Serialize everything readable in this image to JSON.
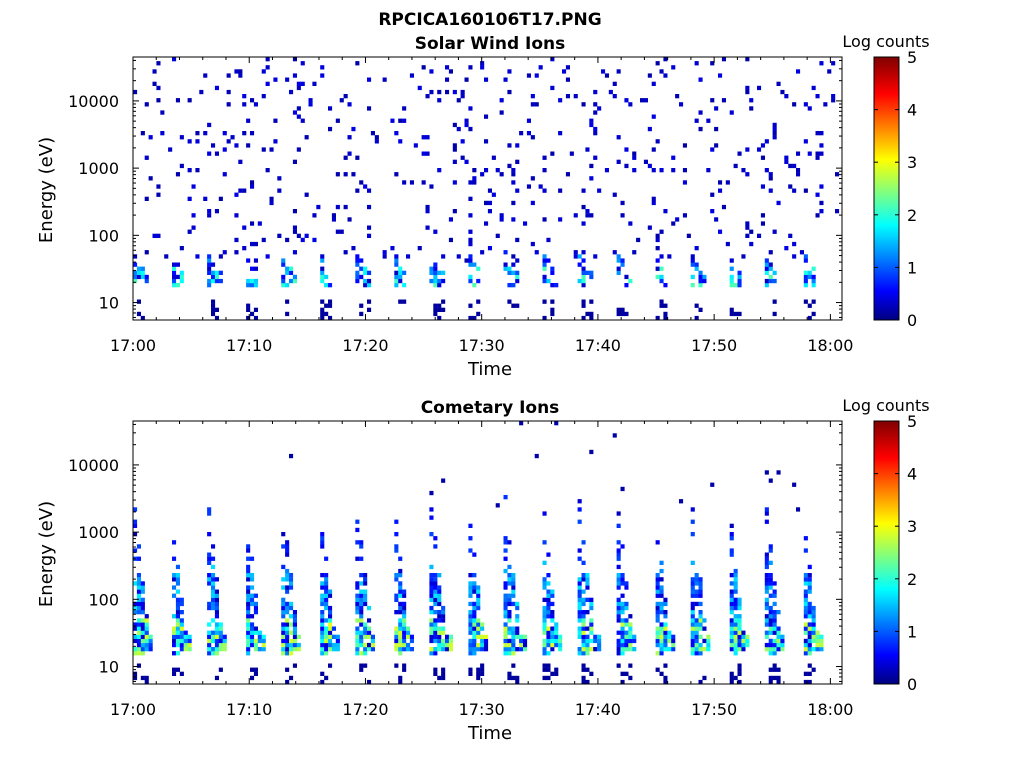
{
  "figure": {
    "title": "RPCICA160106T17.PNG"
  },
  "colors": {
    "colormap": "jet",
    "axis": "#000000",
    "background": "#ffffff"
  },
  "chart_data": [
    {
      "type": "heatmap",
      "title": "Solar Wind Ions",
      "xlabel": "Time",
      "ylabel": "Energy (eV)",
      "x_ticks": [
        "17:00",
        "17:10",
        "17:20",
        "17:30",
        "17:40",
        "17:50",
        "18:00"
      ],
      "y_ticks": [
        "10",
        "100",
        "1000",
        "10000"
      ],
      "y_scale": "log",
      "y_range_eV": [
        5.5,
        45000
      ],
      "x_range": [
        "17:00",
        "18:01"
      ],
      "colorbar": {
        "label": "Log counts",
        "ticks": [
          "0",
          "1",
          "2",
          "3",
          "4",
          "5"
        ],
        "range": [
          0,
          5
        ]
      },
      "scan_period_min": 3.2,
      "scan_count": 19,
      "band": {
        "low_eV": 18,
        "high_eV": 60,
        "peak_log_counts": 2.0
      },
      "scatter_log_counts": 0.2,
      "grid": false
    },
    {
      "type": "heatmap",
      "title": "Cometary Ions",
      "xlabel": "Time",
      "ylabel": "Energy (eV)",
      "x_ticks": [
        "17:00",
        "17:10",
        "17:20",
        "17:30",
        "17:40",
        "17:50",
        "18:00"
      ],
      "y_ticks": [
        "10",
        "100",
        "1000",
        "10000"
      ],
      "y_scale": "log",
      "y_range_eV": [
        5.5,
        45000
      ],
      "x_range": [
        "17:00",
        "18:01"
      ],
      "colorbar": {
        "label": "Log counts",
        "ticks": [
          "0",
          "1",
          "2",
          "3",
          "4",
          "5"
        ],
        "range": [
          0,
          5
        ]
      },
      "scan_period_min": 3.2,
      "scan_count": 19,
      "band": {
        "low_eV": 14,
        "high_eV": 300,
        "peak_log_counts": 2.7
      },
      "spike_high_eV": 4000,
      "grid": false
    }
  ]
}
